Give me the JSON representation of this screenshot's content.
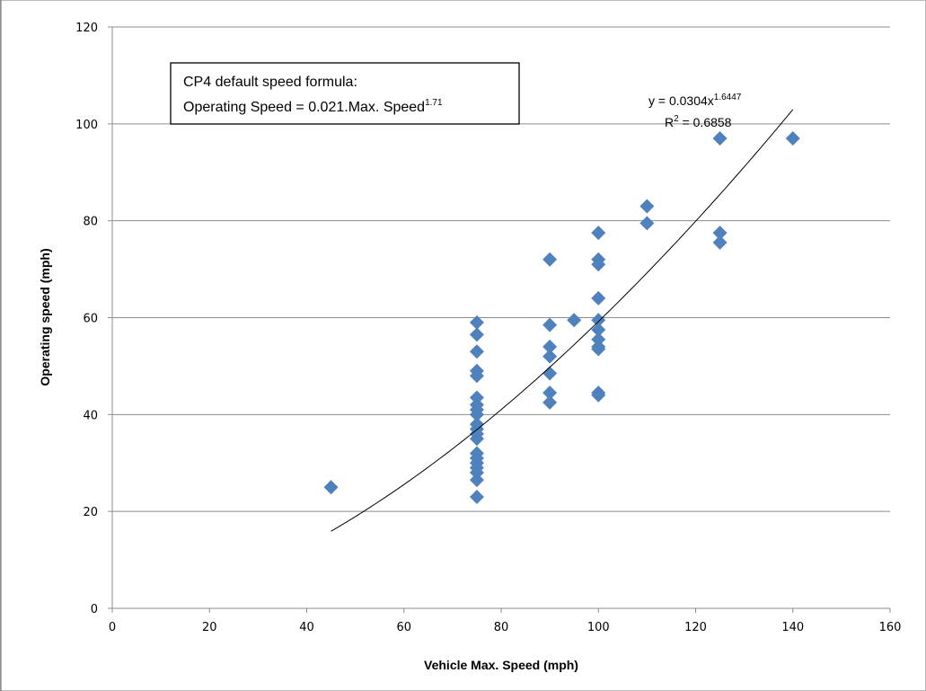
{
  "chart_data": {
    "type": "scatter",
    "x_label": "Vehicle Max. Speed (mph)",
    "y_label": "Operating speed (mph)",
    "x": [
      45,
      75,
      75,
      75,
      75,
      75,
      75,
      75,
      75,
      75,
      75,
      75,
      75,
      75,
      75,
      75,
      75,
      75,
      75,
      75,
      75,
      90,
      90,
      90,
      90,
      90,
      90,
      90,
      95,
      100,
      100,
      100,
      100,
      100,
      100,
      100,
      100,
      100,
      100,
      100,
      110,
      110,
      125,
      125,
      125,
      140
    ],
    "values": [
      25,
      59,
      56.5,
      53,
      49,
      48,
      43.5,
      42,
      41,
      40,
      38,
      37,
      36,
      35,
      32,
      31,
      30,
      29,
      28,
      26.5,
      23,
      72,
      58.5,
      54,
      52,
      48.5,
      44.5,
      42.5,
      59.5,
      77.5,
      72,
      71,
      64,
      59.5,
      57.5,
      55.5,
      54,
      53.5,
      44.5,
      44,
      83,
      79.5,
      97,
      77.5,
      75.5,
      97
    ],
    "color": "#4f81bd",
    "xlim": [
      0,
      160
    ],
    "xticks": [
      0,
      20,
      40,
      60,
      80,
      100,
      120,
      140,
      160
    ],
    "ylim": [
      0,
      120
    ],
    "yticks": [
      0,
      20,
      40,
      60,
      80,
      100,
      120
    ],
    "grid": true,
    "trendline": {
      "coefficient": 0.0304,
      "exponent": 1.6447,
      "r_squared": 0.6858,
      "equation_label": [
        "y = 0.0304x",
        "1.6447"
      ],
      "r2_label": [
        "R",
        "2",
        " = 0.6858"
      ]
    },
    "annotation": {
      "line1": "CP4 default speed formula:",
      "line2": [
        "Operating Speed = 0.021.Max. Speed",
        "1.71"
      ]
    }
  }
}
